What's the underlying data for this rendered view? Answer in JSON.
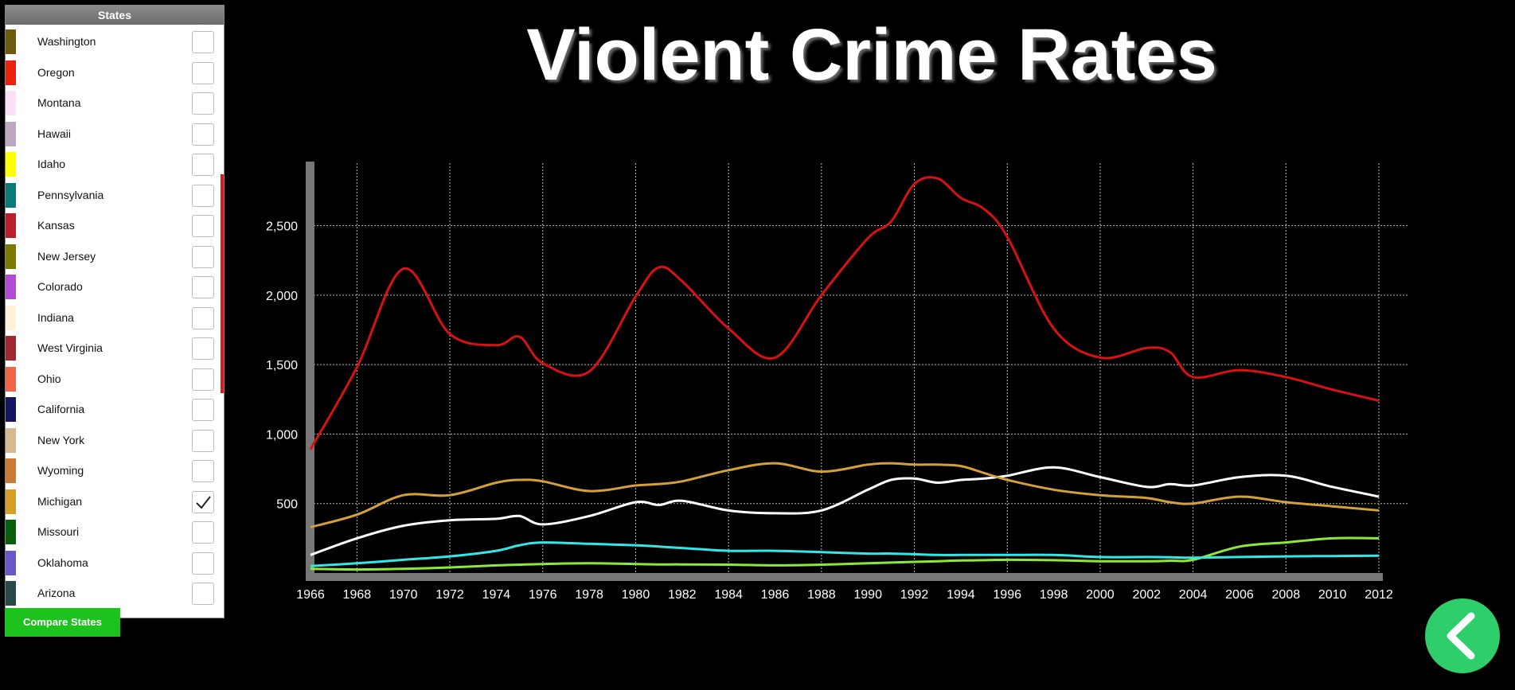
{
  "sidebar": {
    "header": "States",
    "items": [
      {
        "label": "Washington",
        "color": "#6b5a10",
        "checked": false
      },
      {
        "label": "Oregon",
        "color": "#e8240d",
        "checked": false
      },
      {
        "label": "Montana",
        "color": "#fbe0f8",
        "checked": false
      },
      {
        "label": "Hawaii",
        "color": "#bda8c0",
        "checked": false
      },
      {
        "label": "Idaho",
        "color": "#ffff00",
        "checked": false
      },
      {
        "label": "Pennsylvania",
        "color": "#0c7a78",
        "checked": false
      },
      {
        "label": "Kansas",
        "color": "#b8202a",
        "checked": false
      },
      {
        "label": "New Jersey",
        "color": "#7a7a00",
        "checked": false
      },
      {
        "label": "Colorado",
        "color": "#b04cd2",
        "checked": false
      },
      {
        "label": "Indiana",
        "color": "#fff0d8",
        "checked": false
      },
      {
        "label": "West Virginia",
        "color": "#a02830",
        "checked": false
      },
      {
        "label": "Ohio",
        "color": "#f06448",
        "checked": false
      },
      {
        "label": "California",
        "color": "#161660",
        "checked": false
      },
      {
        "label": "New York",
        "color": "#d8b890",
        "checked": false
      },
      {
        "label": "Wyoming",
        "color": "#cc7a38",
        "checked": false
      },
      {
        "label": "Michigan",
        "color": "#d4a028",
        "checked": true
      },
      {
        "label": "Missouri",
        "color": "#0a600a",
        "checked": false
      },
      {
        "label": "Oklahoma",
        "color": "#6a58c8",
        "checked": false
      },
      {
        "label": "Arizona",
        "color": "#2a4a4a",
        "checked": false
      }
    ],
    "compare_label": "Compare States"
  },
  "chart_data": {
    "type": "line",
    "title": "Violent Crime Rates",
    "xlim": [
      1966,
      2012
    ],
    "ylim": [
      0,
      2950
    ],
    "xticks": [
      "1966",
      "1968",
      "1970",
      "1972",
      "1974",
      "1976",
      "1978",
      "1980",
      "1982",
      "1984",
      "1986",
      "1988",
      "1990",
      "1992",
      "1994",
      "1996",
      "1998",
      "2000",
      "2002",
      "2004",
      "2006",
      "2008",
      "2010",
      "2012"
    ],
    "yticks": [
      500,
      1000,
      1500,
      2000,
      2500
    ],
    "ytick_labels": [
      "500",
      "1,000",
      "1,500",
      "2,000",
      "2,500"
    ],
    "grid": true,
    "x": [
      1966,
      1968,
      1970,
      1972,
      1974,
      1975,
      1976,
      1978,
      1980,
      1981,
      1982,
      1984,
      1986,
      1988,
      1990,
      1991,
      1992,
      1993,
      1994,
      1995,
      1996,
      1998,
      2000,
      2002,
      2003,
      2004,
      2006,
      2008,
      2010,
      2012
    ],
    "series": [
      {
        "color": "#d81212",
        "values": [
          890,
          1480,
          2190,
          1720,
          1640,
          1700,
          1510,
          1450,
          1990,
          2200,
          2100,
          1760,
          1550,
          2000,
          2410,
          2530,
          2800,
          2840,
          2700,
          2620,
          2420,
          1760,
          1550,
          1620,
          1590,
          1410,
          1460,
          1410,
          1320,
          1240
        ]
      },
      {
        "color": "#d4a03a",
        "values": [
          330,
          420,
          560,
          560,
          650,
          670,
          660,
          590,
          630,
          640,
          660,
          740,
          790,
          730,
          780,
          790,
          780,
          780,
          770,
          720,
          670,
          600,
          560,
          540,
          510,
          500,
          550,
          510,
          480,
          450
        ]
      },
      {
        "color": "#ffffff",
        "values": [
          130,
          250,
          340,
          380,
          390,
          410,
          350,
          410,
          510,
          490,
          520,
          450,
          430,
          450,
          600,
          670,
          680,
          650,
          670,
          680,
          700,
          760,
          690,
          620,
          640,
          630,
          690,
          700,
          620,
          550
        ]
      },
      {
        "color": "#30e8e8",
        "values": [
          50,
          70,
          95,
          120,
          160,
          200,
          220,
          210,
          200,
          190,
          180,
          160,
          160,
          150,
          140,
          140,
          135,
          130,
          130,
          130,
          130,
          130,
          115,
          115,
          113,
          110,
          115,
          120,
          122,
          125
        ]
      },
      {
        "color": "#8ee83a",
        "values": [
          30,
          25,
          30,
          40,
          55,
          60,
          65,
          70,
          65,
          62,
          62,
          60,
          55,
          60,
          70,
          75,
          80,
          85,
          90,
          92,
          95,
          92,
          85,
          85,
          88,
          95,
          190,
          220,
          250,
          250
        ]
      }
    ]
  }
}
